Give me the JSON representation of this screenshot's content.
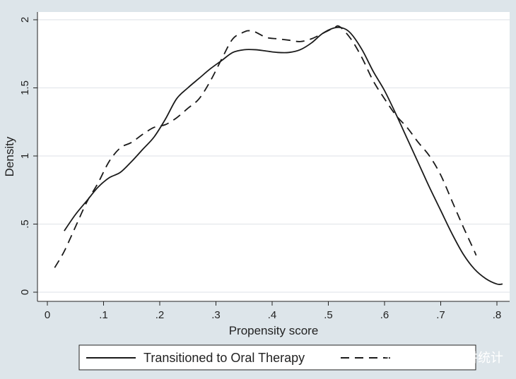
{
  "chart_data": {
    "type": "line",
    "xlabel": "Propensity score",
    "ylabel": "Density",
    "xlim": [
      0,
      0.82
    ],
    "ylim": [
      0,
      2.0
    ],
    "x_ticks": [
      {
        "value": 0.0,
        "label": "0"
      },
      {
        "value": 0.1,
        "label": ".1"
      },
      {
        "value": 0.2,
        "label": ".2"
      },
      {
        "value": 0.3,
        "label": ".3"
      },
      {
        "value": 0.4,
        "label": ".4"
      },
      {
        "value": 0.5,
        "label": ".5"
      },
      {
        "value": 0.6,
        "label": ".6"
      },
      {
        "value": 0.7,
        "label": ".7"
      },
      {
        "value": 0.8,
        "label": ".8"
      }
    ],
    "y_ticks": [
      {
        "value": 0.0,
        "label": "0"
      },
      {
        "value": 0.5,
        "label": ".5"
      },
      {
        "value": 1.0,
        "label": "1"
      },
      {
        "value": 1.5,
        "label": "1.5"
      },
      {
        "value": 2.0,
        "label": "2"
      }
    ],
    "grid": true,
    "legend_position": "bottom",
    "series": [
      {
        "name": "Transitioned to Oral Therapy",
        "style": "solid",
        "color": "#1a1a1a",
        "x": [
          0.03,
          0.05,
          0.07,
          0.09,
          0.11,
          0.13,
          0.15,
          0.17,
          0.19,
          0.21,
          0.23,
          0.25,
          0.27,
          0.29,
          0.31,
          0.33,
          0.35,
          0.37,
          0.39,
          0.41,
          0.43,
          0.45,
          0.47,
          0.49,
          0.51,
          0.525,
          0.54,
          0.56,
          0.58,
          0.6,
          0.62,
          0.64,
          0.66,
          0.68,
          0.7,
          0.72,
          0.74,
          0.76,
          0.78,
          0.8,
          0.81
        ],
        "y": [
          0.45,
          0.57,
          0.67,
          0.77,
          0.84,
          0.88,
          0.96,
          1.05,
          1.14,
          1.27,
          1.42,
          1.5,
          1.57,
          1.64,
          1.7,
          1.76,
          1.78,
          1.78,
          1.77,
          1.76,
          1.76,
          1.78,
          1.83,
          1.9,
          1.94,
          1.94,
          1.9,
          1.78,
          1.62,
          1.48,
          1.31,
          1.13,
          0.95,
          0.77,
          0.6,
          0.43,
          0.28,
          0.17,
          0.1,
          0.06,
          0.06
        ]
      },
      {
        "name": "",
        "style": "dashed",
        "color": "#1a1a1a",
        "x": [
          0.013,
          0.03,
          0.05,
          0.07,
          0.09,
          0.11,
          0.13,
          0.15,
          0.17,
          0.19,
          0.21,
          0.23,
          0.25,
          0.27,
          0.29,
          0.31,
          0.33,
          0.35,
          0.36,
          0.37,
          0.39,
          0.41,
          0.43,
          0.45,
          0.47,
          0.49,
          0.51,
          0.52,
          0.54,
          0.56,
          0.58,
          0.6,
          0.62,
          0.64,
          0.66,
          0.68,
          0.7,
          0.72,
          0.74,
          0.76,
          0.763
        ],
        "y": [
          0.18,
          0.3,
          0.48,
          0.66,
          0.8,
          0.96,
          1.06,
          1.1,
          1.16,
          1.21,
          1.23,
          1.28,
          1.35,
          1.42,
          1.55,
          1.71,
          1.86,
          1.91,
          1.92,
          1.91,
          1.87,
          1.86,
          1.85,
          1.84,
          1.86,
          1.9,
          1.94,
          1.95,
          1.86,
          1.72,
          1.55,
          1.42,
          1.3,
          1.21,
          1.1,
          1.0,
          0.86,
          0.67,
          0.48,
          0.3,
          0.27
        ]
      }
    ]
  },
  "legend": {
    "items": [
      {
        "label": "Transitioned to Oral Therapy",
        "style": "solid"
      },
      {
        "label": "",
        "style": "dashed"
      }
    ]
  },
  "watermark": {
    "text": "知乎 @郑老师讲统计"
  },
  "colors": {
    "page_bg": "#dde5ea",
    "plot_bg": "#ffffff",
    "grid": "#e4e8ec",
    "line": "#1a1a1a"
  }
}
